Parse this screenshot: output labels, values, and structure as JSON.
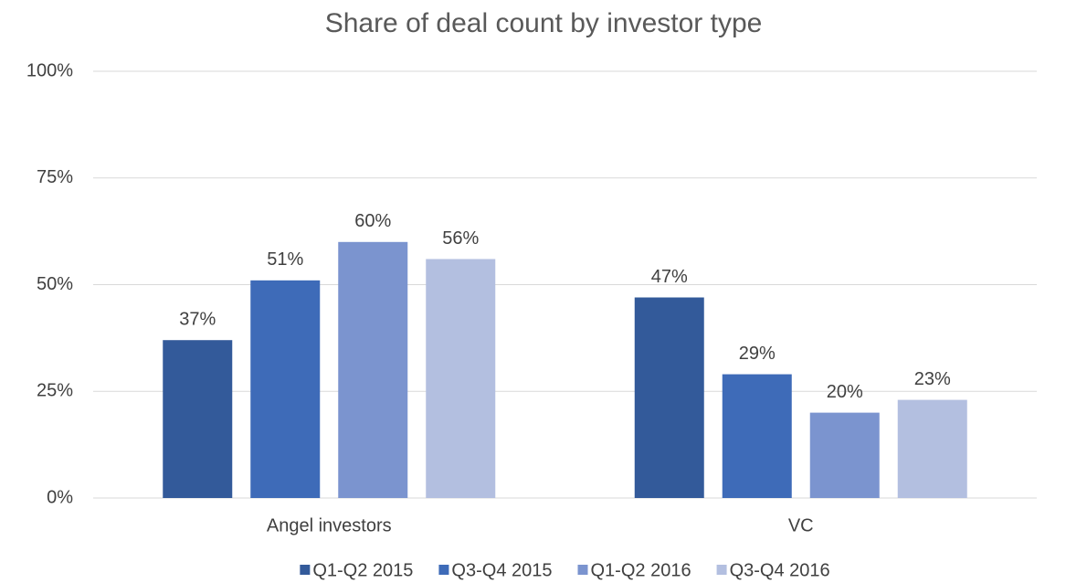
{
  "chart_data": {
    "type": "bar",
    "title": "Share of deal count by investor type",
    "categories": [
      "Angel investors",
      "VC"
    ],
    "series": [
      {
        "name": "Q1-Q2 2015",
        "color": "#335a9a",
        "values": [
          37,
          47
        ],
        "value_labels": [
          "37%",
          "47%"
        ]
      },
      {
        "name": "Q3-Q4 2015",
        "color": "#3e6bb8",
        "values": [
          51,
          29
        ],
        "value_labels": [
          "51%",
          "29%"
        ]
      },
      {
        "name": "Q1-Q2 2016",
        "color": "#7b94cf",
        "values": [
          60,
          20
        ],
        "value_labels": [
          "60%",
          "20%"
        ]
      },
      {
        "name": "Q3-Q4 2016",
        "color": "#b3bfe0",
        "values": [
          56,
          23
        ],
        "value_labels": [
          "56%",
          "23%"
        ]
      }
    ],
    "ylim": [
      0,
      100
    ],
    "yticks": [
      {
        "value": 0,
        "label": "0%"
      },
      {
        "value": 25,
        "label": "25%"
      },
      {
        "value": 50,
        "label": "50%"
      },
      {
        "value": 75,
        "label": "75%"
      },
      {
        "value": 100,
        "label": "100%"
      }
    ],
    "grid": true,
    "legend": "bottom"
  }
}
